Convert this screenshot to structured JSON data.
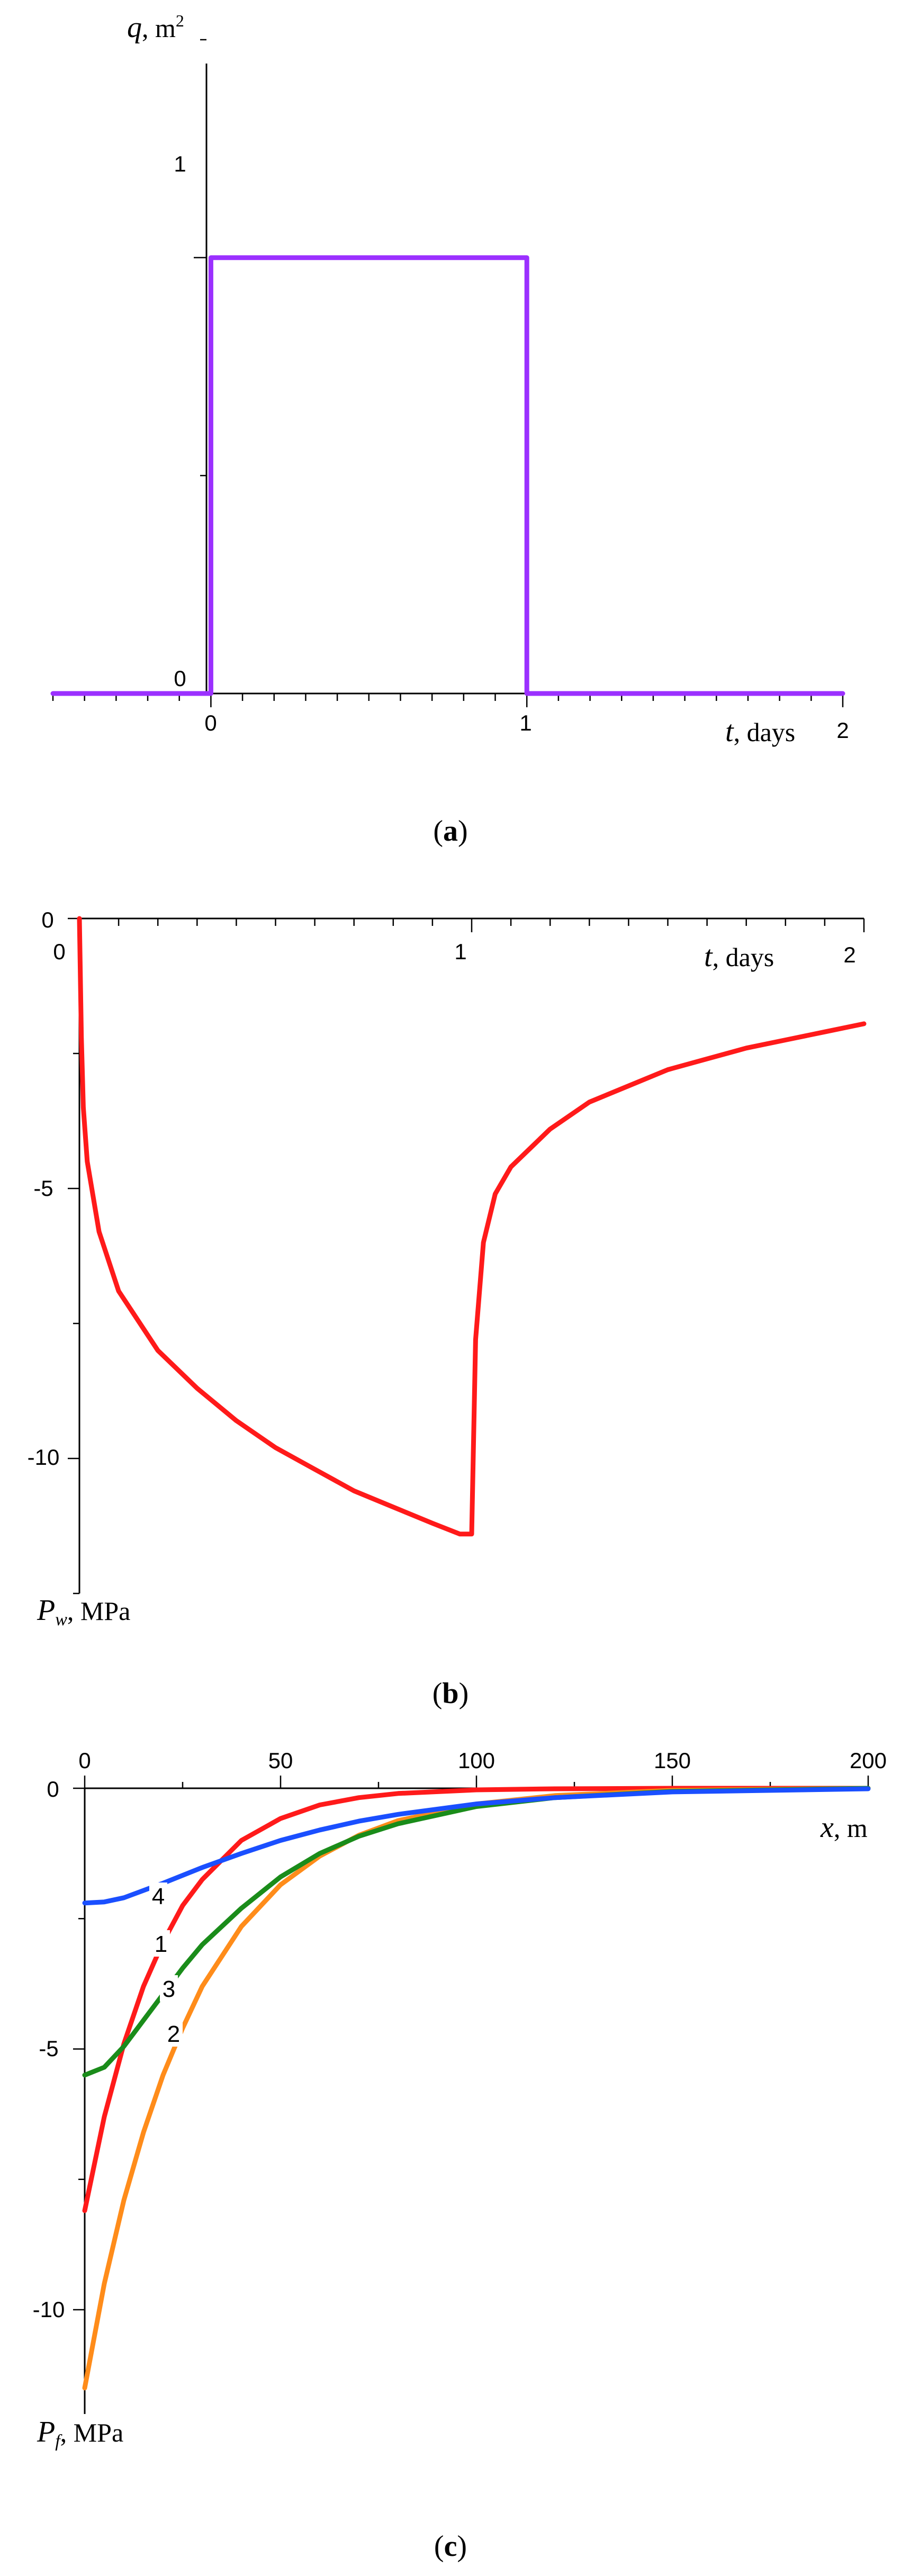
{
  "figure": {
    "panels": [
      {
        "label": "a"
      },
      {
        "label": "b"
      },
      {
        "label": "c"
      }
    ]
  },
  "chart_data": [
    {
      "panel": "a",
      "type": "line",
      "xlabel": "t, days",
      "ylabel": "q, m2",
      "xlim": [
        -0.5,
        2
      ],
      "ylim": [
        0,
        1.5
      ],
      "x_ticks": [
        "0",
        "1",
        "2"
      ],
      "y_ticks": [
        "0",
        "1"
      ],
      "grid": false,
      "series": [
        {
          "color": "#9B30FF",
          "x": [
            -0.5,
            0,
            0,
            1,
            1,
            2
          ],
          "y": [
            0,
            0,
            1,
            1,
            0,
            0
          ]
        }
      ]
    },
    {
      "panel": "b",
      "type": "line",
      "xlabel": "t, days",
      "ylabel": "Pw, MPa",
      "xlim": [
        0,
        2
      ],
      "ylim": [
        -12.5,
        0
      ],
      "x_ticks": [
        "0",
        "1",
        "2"
      ],
      "y_ticks": [
        "0",
        "-5",
        "-10"
      ],
      "grid": false,
      "series": [
        {
          "color": "#FF1A1A",
          "x": [
            0,
            0.005,
            0.01,
            0.02,
            0.05,
            0.1,
            0.2,
            0.3,
            0.4,
            0.5,
            0.6,
            0.7,
            0.8,
            0.9,
            0.97,
            1.0,
            1.01,
            1.03,
            1.06,
            1.1,
            1.2,
            1.3,
            1.4,
            1.5,
            1.6,
            1.7,
            1.8,
            1.9,
            2.0
          ],
          "y": [
            0,
            -2.2,
            -3.5,
            -4.5,
            -5.8,
            -6.9,
            -8.0,
            -8.7,
            -9.3,
            -9.8,
            -10.2,
            -10.6,
            -10.9,
            -11.2,
            -11.4,
            -11.4,
            -7.8,
            -6.0,
            -5.1,
            -4.6,
            -3.9,
            -3.4,
            -3.1,
            -2.8,
            -2.6,
            -2.4,
            -2.25,
            -2.1,
            -1.95
          ]
        }
      ]
    },
    {
      "panel": "c",
      "type": "line",
      "xlabel": "x, m",
      "ylabel": "Pf, MPa",
      "xlim": [
        0,
        200
      ],
      "ylim": [
        -12,
        0
      ],
      "x_ticks": [
        "0",
        "50",
        "100",
        "150",
        "200"
      ],
      "y_ticks": [
        "0",
        "-5",
        "-10"
      ],
      "grid": false,
      "series": [
        {
          "name": "1",
          "color": "#FF1A1A",
          "x": [
            0,
            5,
            10,
            15,
            20,
            25,
            30,
            40,
            50,
            60,
            70,
            80,
            100,
            120,
            150,
            200
          ],
          "y": [
            -8.1,
            -6.3,
            -4.9,
            -3.8,
            -2.95,
            -2.25,
            -1.75,
            -1.0,
            -0.58,
            -0.32,
            -0.18,
            -0.1,
            -0.03,
            -0.01,
            0,
            0
          ]
        },
        {
          "name": "2",
          "color": "#FF8C1A",
          "x": [
            0,
            5,
            10,
            15,
            20,
            25,
            30,
            40,
            50,
            60,
            70,
            80,
            100,
            120,
            150,
            200
          ],
          "y": [
            -11.5,
            -9.5,
            -7.9,
            -6.6,
            -5.5,
            -4.6,
            -3.8,
            -2.65,
            -1.85,
            -1.3,
            -0.9,
            -0.62,
            -0.3,
            -0.14,
            -0.04,
            0
          ]
        },
        {
          "name": "3",
          "color": "#1A8C1A",
          "x": [
            0,
            5,
            10,
            15,
            20,
            25,
            30,
            40,
            50,
            60,
            70,
            80,
            100,
            120,
            150,
            200
          ],
          "y": [
            -5.5,
            -5.35,
            -4.95,
            -4.45,
            -3.95,
            -3.45,
            -3.0,
            -2.3,
            -1.7,
            -1.25,
            -0.92,
            -0.68,
            -0.35,
            -0.18,
            -0.06,
            0
          ]
        },
        {
          "name": "4",
          "color": "#1A4FFF",
          "x": [
            0,
            5,
            10,
            20,
            30,
            40,
            50,
            60,
            70,
            80,
            100,
            120,
            150,
            200
          ],
          "y": [
            -2.2,
            -2.18,
            -2.1,
            -1.82,
            -1.52,
            -1.25,
            -1.0,
            -0.8,
            -0.63,
            -0.5,
            -0.3,
            -0.18,
            -0.07,
            -0.01
          ]
        }
      ]
    }
  ]
}
